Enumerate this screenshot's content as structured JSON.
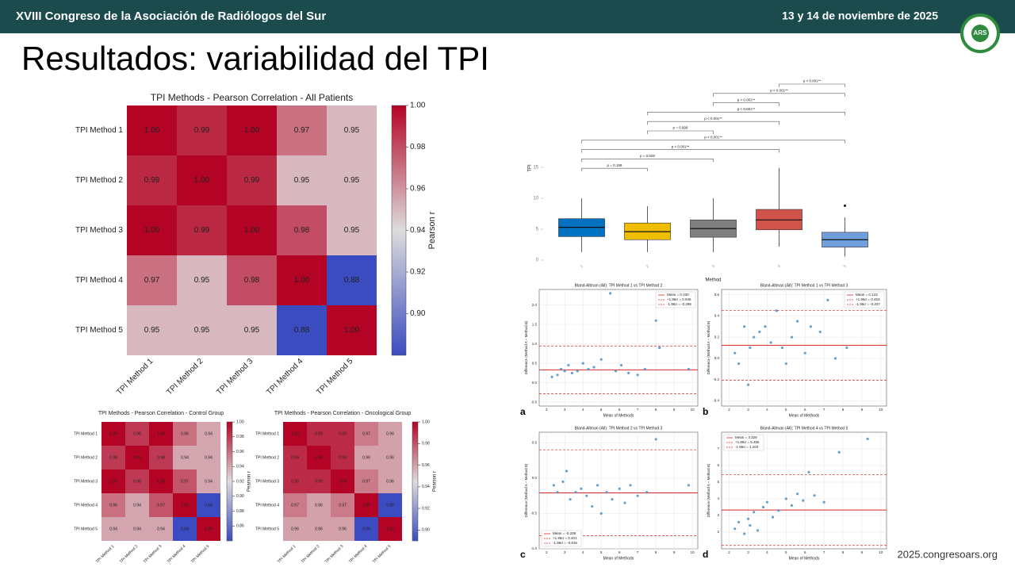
{
  "header": {
    "title": "XVIII Congreso de la Asociación de Radiólogos del Sur",
    "date": "13 y 14 de noviembre de 2025",
    "logo": "ARS"
  },
  "title": "Resultados: variabilidad del TPI",
  "footer": "2025.congresoars.org",
  "chart_data": [
    {
      "type": "heatmap",
      "title": "TPI Methods - Pearson Correlation - All Patients",
      "x_categories": [
        "TPI Method 1",
        "TPI Method 2",
        "TPI Method 3",
        "TPI Method 4",
        "TPI Method 5"
      ],
      "y_categories": [
        "TPI Method 1",
        "TPI Method 2",
        "TPI Method 3",
        "TPI Method 4",
        "TPI Method 5"
      ],
      "values": [
        [
          1,
          0.99,
          1,
          0.97,
          0.95
        ],
        [
          0.99,
          1,
          0.99,
          0.95,
          0.95
        ],
        [
          1,
          0.99,
          1,
          0.98,
          0.95
        ],
        [
          0.97,
          0.95,
          0.98,
          1,
          0.88
        ],
        [
          0.95,
          0.95,
          0.95,
          0.88,
          1
        ]
      ],
      "value_labels": [
        [
          "1.00",
          "0.99",
          "1.00",
          "0.97",
          "0.95"
        ],
        [
          "0.99",
          "1.00",
          "0.99",
          "0.95",
          "0.95"
        ],
        [
          "1.00",
          "0.99",
          "1.00",
          "0.98",
          "0.95"
        ],
        [
          "0.97",
          "0.95",
          "0.98",
          "1.00",
          "0.88"
        ],
        [
          "0.95",
          "0.95",
          "0.95",
          "0.88",
          "1.00"
        ]
      ],
      "colorbar_label": "Pearson r",
      "clim": [
        0.88,
        1
      ],
      "cticks": [
        {
          "value": 1,
          "label": "1.00"
        },
        0.98,
        0.96,
        0.94,
        0.92,
        {
          "value": 0.9,
          "label": "0.90"
        }
      ]
    },
    {
      "type": "heatmap",
      "title": "TPI Methods - Pearson Correlation - Control Group",
      "x_categories": [
        "TPI Method 1",
        "TPI Method 2",
        "TPI Method 3",
        "TPI Method 4",
        "TPI Method 5"
      ],
      "y_categories": [
        "TPI Method 1",
        "TPI Method 2",
        "TPI Method 3",
        "TPI Method 4",
        "TPI Method 5"
      ],
      "values": [
        [
          1,
          0.98,
          1,
          0.96,
          0.94
        ],
        [
          0.98,
          1,
          0.98,
          0.94,
          0.94
        ],
        [
          1,
          0.98,
          1,
          0.97,
          0.94
        ],
        [
          0.96,
          0.94,
          0.97,
          1,
          0.84
        ],
        [
          0.94,
          0.94,
          0.94,
          0.84,
          1
        ]
      ],
      "value_labels": [
        [
          "1.00",
          "0.98",
          "1.00",
          "0.96",
          "0.94"
        ],
        [
          "0.98",
          "1.00",
          "0.98",
          "0.94",
          "0.94"
        ],
        [
          "1.00",
          "0.98",
          "1.00",
          "0.97",
          "0.94"
        ],
        [
          "0.96",
          "0.94",
          "0.97",
          "1.00",
          "0.84"
        ],
        [
          "0.94",
          "0.94",
          "0.94",
          "0.84",
          "1.00"
        ]
      ],
      "colorbar_label": "Pearson r",
      "clim": [
        0.84,
        1
      ],
      "cticks": [
        {
          "value": 1,
          "label": "1.00"
        },
        0.98,
        0.96,
        0.94,
        0.92,
        {
          "value": 0.9,
          "label": "0.90"
        },
        0.88,
        0.86
      ]
    },
    {
      "type": "heatmap",
      "title": "TPI Methods - Pearson Correlation - Oncological Group",
      "x_categories": [
        "TPI Method 1",
        "TPI Method 2",
        "TPI Method 3",
        "TPI Method 4",
        "TPI Method 5"
      ],
      "y_categories": [
        "TPI Method 1",
        "TPI Method 2",
        "TPI Method 3",
        "TPI Method 4",
        "TPI Method 5"
      ],
      "values": [
        [
          1,
          0.99,
          0.99,
          0.97,
          0.96
        ],
        [
          0.99,
          1,
          0.99,
          0.96,
          0.96
        ],
        [
          0.99,
          0.99,
          1,
          0.97,
          0.96
        ],
        [
          0.97,
          0.96,
          0.97,
          1,
          0.89
        ],
        [
          0.96,
          0.96,
          0.96,
          0.89,
          1
        ]
      ],
      "value_labels": [
        [
          "1.00",
          "0.99",
          "0.99",
          "0.97",
          "0.96"
        ],
        [
          "0.99",
          "1.00",
          "0.99",
          "0.96",
          "0.96"
        ],
        [
          "0.99",
          "0.99",
          "1.00",
          "0.97",
          "0.96"
        ],
        [
          "0.97",
          "0.96",
          "0.97",
          "1.00",
          "0.89"
        ],
        [
          "0.96",
          "0.96",
          "0.96",
          "0.89",
          "1.00"
        ]
      ],
      "colorbar_label": "Pearson r",
      "clim": [
        0.89,
        1
      ],
      "cticks": [
        {
          "value": 1,
          "label": "1.00"
        },
        0.98,
        0.96,
        0.94,
        0.92,
        {
          "value": 0.9,
          "label": "0.90"
        }
      ]
    },
    {
      "type": "box",
      "ylabel": "TPI",
      "xlabel": "Method",
      "categories": [
        "1",
        "2",
        "3",
        "4",
        "5"
      ],
      "colors": [
        "#0070c0",
        "#f0be00",
        "#7f7f7f",
        "#d0534c",
        "#6f9fdc"
      ],
      "q1": [
        3.8,
        3.3,
        3.7,
        4.9,
        2.1
      ],
      "median": [
        5.3,
        4.6,
        5.1,
        6.5,
        3.3
      ],
      "q3": [
        6.7,
        6.0,
        6.5,
        8.2,
        4.5
      ],
      "whisker_low": [
        1.3,
        1.3,
        1.3,
        2.2,
        0.6
      ],
      "whisker_high": [
        10,
        8.7,
        10,
        14.9,
        6.9
      ],
      "outliers": [
        [],
        [],
        [],
        [],
        [
          8.8
        ]
      ],
      "ylim": [
        -1,
        17
      ],
      "yticks": [
        0,
        5,
        10,
        15
      ],
      "comparisons": [
        {
          "groups": [
            "4",
            "5"
          ],
          "label": "p < 0.001**"
        },
        {
          "groups": [
            "3",
            "5"
          ],
          "label": "p < 0.001**"
        },
        {
          "groups": [
            "3",
            "4"
          ],
          "label": "p < 0.001**"
        },
        {
          "groups": [
            "2",
            "5"
          ],
          "label": "p < 0.001**"
        },
        {
          "groups": [
            "2",
            "4"
          ],
          "label": "p < 0.001**"
        },
        {
          "groups": [
            "2",
            "3"
          ],
          "label": "p = 0.999"
        },
        {
          "groups": [
            "1",
            "5"
          ],
          "label": "p < 0.001**"
        },
        {
          "groups": [
            "1",
            "4"
          ],
          "label": "p < 0.001**"
        },
        {
          "groups": [
            "1",
            "3"
          ],
          "label": "p = 0.628"
        },
        {
          "groups": [
            "1",
            "2"
          ],
          "label": "p = 0.199"
        }
      ]
    },
    {
      "type": "bland-altman",
      "panel": "a",
      "title": "Bland-Altman (All): TPI Method 1 vs TPI Method 2",
      "xlabel": "Mean of Methods",
      "ylabel": "Difference (Method A − Method B)",
      "legend": "upper right",
      "xlim": [
        1.6,
        10.3
      ],
      "xticks": [
        2,
        3,
        4,
        5,
        6,
        7,
        8,
        9,
        10
      ],
      "ylim": [
        -0.6,
        2.4
      ],
      "yticks": [
        {
          "value": -0.5,
          "label": "-0.5"
        },
        {
          "value": 0,
          "label": "0.0"
        },
        {
          "value": 0.5,
          "label": "0.5"
        },
        {
          "value": 1,
          "label": "1.0"
        },
        {
          "value": 1.5,
          "label": "1.5"
        },
        {
          "value": 2,
          "label": "2.0"
        }
      ],
      "lines": [
        {
          "name": "Mean = 0.330",
          "value": 0.33,
          "color": "#d62728",
          "dash": false
        },
        {
          "name": "+1.96σ = 0.946",
          "value": 0.946,
          "color": "#d62728",
          "dash": true
        },
        {
          "name": "-1.96σ = -0.286",
          "value": -0.286,
          "color": "#d62728",
          "dash": true
        }
      ],
      "x": [
        2.3,
        2.6,
        2.8,
        3.0,
        3.2,
        3.4,
        3.7,
        4.0,
        4.3,
        4.6,
        5.0,
        5.5,
        5.8,
        6.1,
        6.5,
        7.0,
        7.4,
        8.0,
        8.2,
        9.8
      ],
      "y": [
        0.15,
        0.2,
        0.35,
        0.3,
        0.45,
        0.25,
        0.3,
        0.5,
        0.35,
        0.4,
        0.6,
        2.3,
        0.3,
        0.45,
        0.25,
        0.2,
        0.35,
        1.6,
        0.9,
        0.35
      ]
    },
    {
      "type": "bland-altman",
      "panel": "b",
      "title": "Bland-Altman (All): TPI Method 1 vs TPI Method 3",
      "xlabel": "Mean of Methods",
      "ylabel": "Difference (Method A − Method B)",
      "legend": "upper right",
      "xlim": [
        1.6,
        10.3
      ],
      "xticks": [
        2,
        3,
        4,
        5,
        6,
        7,
        8,
        9,
        10
      ],
      "ylim": [
        -0.45,
        0.65
      ],
      "yticks": [
        {
          "value": -0.4,
          "label": "-0.4"
        },
        {
          "value": -0.2,
          "label": "-0.2"
        },
        {
          "value": 0,
          "label": "0.0"
        },
        {
          "value": 0.2,
          "label": "0.2"
        },
        {
          "value": 0.4,
          "label": "0.4"
        },
        {
          "value": 0.6,
          "label": "0.6"
        }
      ],
      "lines": [
        {
          "name": "Mean = 0.123",
          "value": 0.123,
          "color": "#d62728",
          "dash": false
        },
        {
          "name": "+1.96σ = 0.453",
          "value": 0.453,
          "color": "#d62728",
          "dash": true
        },
        {
          "name": "-1.96σ = -0.207",
          "value": -0.207,
          "color": "#d62728",
          "dash": true
        }
      ],
      "x": [
        2.3,
        2.5,
        2.8,
        3.0,
        3.1,
        3.3,
        3.6,
        3.9,
        4.2,
        4.5,
        4.8,
        5.0,
        5.3,
        5.6,
        6.0,
        6.3,
        6.8,
        7.2,
        7.6,
        8.2
      ],
      "y": [
        0.05,
        -0.05,
        0.3,
        -0.25,
        0.1,
        0.2,
        0.25,
        0.3,
        0.15,
        0.45,
        0.1,
        -0.05,
        0.2,
        0.35,
        0.05,
        0.3,
        0.25,
        0.55,
        0,
        0.1
      ]
    },
    {
      "type": "bland-altman",
      "panel": "c",
      "title": "Bland-Altman (All): TPI Method 2 vs TPI Method 3",
      "xlabel": "Mean of Methods",
      "ylabel": "Difference (Method A − Method B)",
      "legend": "lower left",
      "xlim": [
        1.6,
        10.3
      ],
      "xticks": [
        2,
        3,
        4,
        5,
        6,
        7,
        8,
        9,
        10
      ],
      "ylim": [
        -1,
        0.65
      ],
      "yticks": [
        {
          "value": -1,
          "label": "-1.0"
        },
        {
          "value": -0.5,
          "label": "-0.5"
        },
        {
          "value": 0,
          "label": "0.0"
        },
        {
          "value": 0.5,
          "label": "0.5"
        }
      ],
      "lines": [
        {
          "name": "Mean = -0.208",
          "value": -0.208,
          "color": "#d62728",
          "dash": false
        },
        {
          "name": "+1.96σ = 0.401",
          "value": 0.401,
          "color": "#d62728",
          "dash": true
        },
        {
          "name": "-1.96σ = -0.816",
          "value": -0.816,
          "color": "#d62728",
          "dash": true
        }
      ],
      "x": [
        2.4,
        2.6,
        2.9,
        3.1,
        3.3,
        3.6,
        3.9,
        4.2,
        4.5,
        4.8,
        5.0,
        5.3,
        5.6,
        6.0,
        6.3,
        6.6,
        7.0,
        7.5,
        8.0,
        9.8
      ],
      "y": [
        -0.1,
        -0.2,
        -0.05,
        0.1,
        -0.3,
        -0.2,
        -0.15,
        -0.25,
        -0.4,
        -0.1,
        -0.5,
        -0.2,
        -0.3,
        -0.15,
        -0.35,
        -0.1,
        -0.25,
        -0.2,
        0.55,
        -0.1
      ]
    },
    {
      "type": "bland-altman",
      "panel": "d",
      "title": "Bland-Altman (All): TPI Method 4 vs TPI Method 5",
      "xlabel": "Mean of Methods",
      "ylabel": "Difference (Method A − Method B)",
      "legend": "upper left",
      "xlim": [
        1.6,
        10.3
      ],
      "xticks": [
        2,
        3,
        4,
        5,
        6,
        7,
        8,
        9,
        10
      ],
      "ylim": [
        1,
        8
      ],
      "yticks": [
        2,
        3,
        4,
        5,
        6,
        7
      ],
      "lines": [
        {
          "name": "Mean = 3.329",
          "value": 3.329,
          "color": "#d62728",
          "dash": false
        },
        {
          "name": "+1.96σ = 5.455",
          "value": 5.455,
          "color": "#d62728",
          "dash": true
        },
        {
          "name": "-1.96σ = 1.203",
          "value": 1.203,
          "color": "#d62728",
          "dash": true
        }
      ],
      "x": [
        2.3,
        2.5,
        2.8,
        3.0,
        3.1,
        3.3,
        3.5,
        3.8,
        4.0,
        4.3,
        4.6,
        5.0,
        5.3,
        5.6,
        5.9,
        6.2,
        6.5,
        7.0,
        7.8,
        9.3
      ],
      "y": [
        2.2,
        2.6,
        1.9,
        2.8,
        2.4,
        3.2,
        2.1,
        3.5,
        3.8,
        2.9,
        3.3,
        4.0,
        3.6,
        4.3,
        3.9,
        5.6,
        4.2,
        3.8,
        6.8,
        7.6
      ]
    }
  ]
}
